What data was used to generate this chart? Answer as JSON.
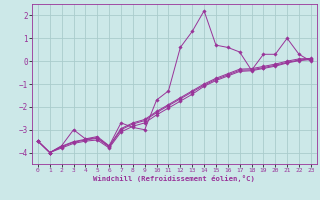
{
  "xlabel": "Windchill (Refroidissement éolien,°C)",
  "bg_color": "#cce8e8",
  "line_color": "#993399",
  "grid_color": "#aacccc",
  "xlim": [
    -0.5,
    23.5
  ],
  "ylim": [
    -4.5,
    2.5
  ],
  "yticks": [
    -4,
    -3,
    -2,
    -1,
    0,
    1,
    2
  ],
  "xticks": [
    0,
    1,
    2,
    3,
    4,
    5,
    6,
    7,
    8,
    9,
    10,
    11,
    12,
    13,
    14,
    15,
    16,
    17,
    18,
    19,
    20,
    21,
    22,
    23
  ],
  "series1": [
    -3.5,
    -4.0,
    -3.7,
    -3.0,
    -3.4,
    -3.3,
    -3.7,
    -2.7,
    -2.9,
    -3.0,
    -1.7,
    -1.3,
    0.6,
    1.3,
    2.2,
    0.7,
    0.6,
    0.4,
    -0.4,
    0.3,
    0.3,
    1.0,
    0.3,
    0.0
  ],
  "series2": [
    -3.5,
    -4.0,
    -3.8,
    -3.6,
    -3.5,
    -3.45,
    -3.8,
    -3.1,
    -2.85,
    -2.7,
    -2.35,
    -2.05,
    -1.75,
    -1.45,
    -1.1,
    -0.85,
    -0.65,
    -0.45,
    -0.42,
    -0.32,
    -0.22,
    -0.08,
    0.02,
    0.07
  ],
  "series3": [
    -3.5,
    -4.0,
    -3.75,
    -3.55,
    -3.45,
    -3.38,
    -3.75,
    -3.0,
    -2.75,
    -2.6,
    -2.25,
    -1.95,
    -1.65,
    -1.35,
    -1.05,
    -0.8,
    -0.6,
    -0.4,
    -0.38,
    -0.28,
    -0.18,
    -0.05,
    0.05,
    0.1
  ],
  "series4": [
    -3.5,
    -4.0,
    -3.72,
    -3.52,
    -3.42,
    -3.35,
    -3.72,
    -2.95,
    -2.7,
    -2.55,
    -2.2,
    -1.9,
    -1.6,
    -1.3,
    -1.0,
    -0.75,
    -0.55,
    -0.35,
    -0.33,
    -0.23,
    -0.13,
    0.0,
    0.1,
    0.12
  ]
}
